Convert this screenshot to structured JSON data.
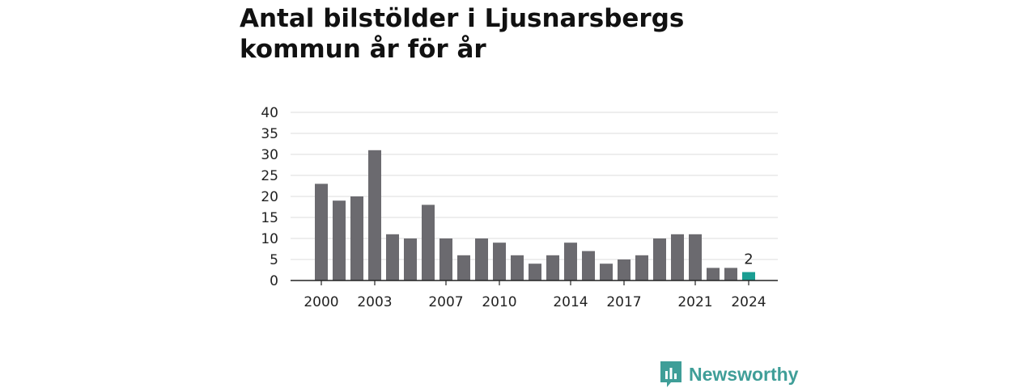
{
  "title": "Antal bilstölder i Ljusnarsbergs kommun år för år",
  "brand": {
    "name": "Newsworthy",
    "icon": "newsworthy-logo-icon",
    "color": "#3f9e98"
  },
  "chart_data": {
    "type": "bar",
    "title": "Antal bilstölder i Ljusnarsbergs kommun år för år",
    "categories": [
      2000,
      2001,
      2002,
      2003,
      2004,
      2005,
      2006,
      2007,
      2008,
      2009,
      2010,
      2011,
      2012,
      2013,
      2014,
      2015,
      2016,
      2017,
      2018,
      2019,
      2020,
      2021,
      2022,
      2023,
      2024
    ],
    "values": [
      23,
      19,
      20,
      31,
      11,
      10,
      18,
      10,
      6,
      10,
      9,
      6,
      4,
      6,
      9,
      7,
      4,
      5,
      6,
      10,
      11,
      11,
      3,
      3,
      2
    ],
    "x_tick_labels": [
      2000,
      2003,
      2007,
      2010,
      2014,
      2017,
      2021,
      2024
    ],
    "y_ticks": [
      0,
      5,
      10,
      15,
      20,
      25,
      30,
      35,
      40
    ],
    "ylim": [
      0,
      40
    ],
    "xlabel": "",
    "ylabel": "",
    "grid": true,
    "legend": "none",
    "bar_color": "#6b6a6f",
    "highlight_color": "#1a9e93",
    "highlight_category": 2024,
    "data_labels": [
      {
        "category": 2024,
        "text": "2"
      }
    ]
  }
}
